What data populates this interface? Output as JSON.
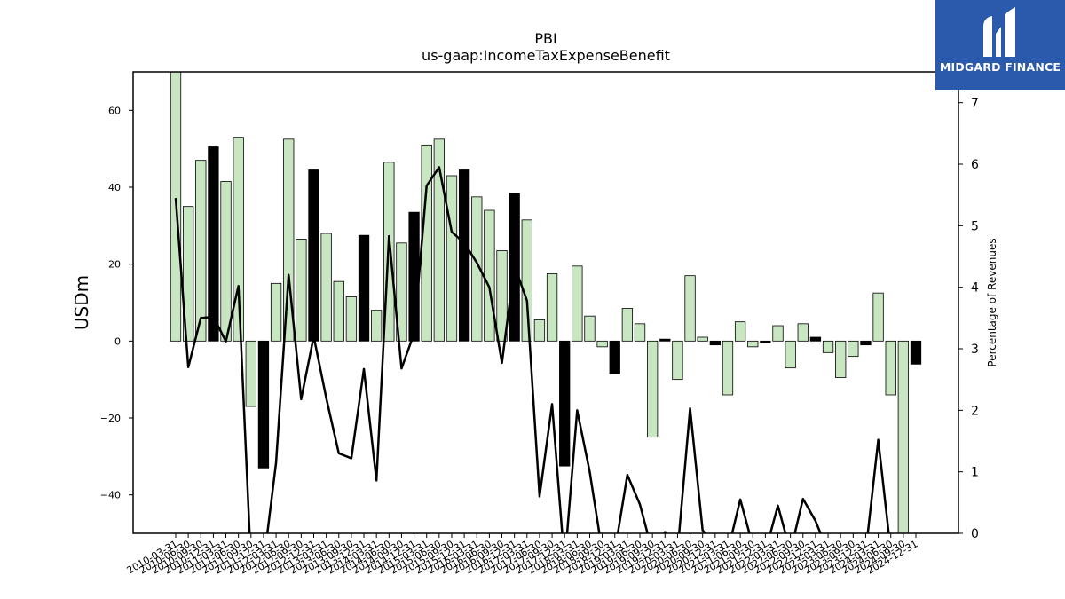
{
  "chart_data": {
    "type": "bar",
    "title": "PBI",
    "subtitle": "us-gaap:IncomeTaxExpenseBenefit",
    "ylabel": "USDm",
    "y2label": "Percentage of Revenues",
    "ylim": [
      -50,
      70
    ],
    "y2lim": [
      0,
      7.5
    ],
    "yticks": [
      -40,
      -20,
      0,
      20,
      40,
      60
    ],
    "y2ticks": [
      0,
      1,
      2,
      3,
      4,
      5,
      6,
      7
    ],
    "grid": false,
    "xtick_labels": [
      "2010-03-31",
      "2010-06-30",
      "2010-09-30",
      "2010-12-31",
      "2011-03-31",
      "2011-06-30",
      "2011-09-30",
      "2011-12-31",
      "2012-03-31",
      "2012-06-30",
      "2012-09-30",
      "2012-12-31",
      "2013-03-31",
      "2013-06-30",
      "2013-09-30",
      "2013-12-31",
      "2014-03-31",
      "2014-06-30",
      "2014-09-30",
      "2014-12-31",
      "2015-03-31",
      "2015-06-30",
      "2015-09-30",
      "2015-12-31",
      "2016-03-31",
      "2016-06-30",
      "2016-09-30",
      "2016-12-31",
      "2017-03-31",
      "2017-06-30",
      "2017-09-30",
      "2017-12-31",
      "2018-03-31",
      "2018-06-30",
      "2018-09-30",
      "2018-12-31",
      "2019-03-31",
      "2019-06-30",
      "2019-09-30",
      "2019-12-31",
      "2020-03-31",
      "2020-06-30",
      "2020-09-30",
      "2020-12-31",
      "2021-03-31",
      "2021-06-30",
      "2021-09-30",
      "2021-12-31",
      "2022-03-31",
      "2022-06-30",
      "2022-09-30",
      "2022-12-31",
      "2023-03-31",
      "2023-06-30",
      "2023-09-30",
      "2023-12-31",
      "2024-03-31",
      "2024-06-30",
      "2024-09-30",
      "2024-12-31"
    ],
    "series": [
      {
        "kind": "bar",
        "values": [
          72,
          35,
          47,
          50.5,
          41.5,
          53,
          -17,
          -33,
          15,
          52.5,
          26.5,
          44.5,
          28,
          15.5,
          11.5,
          27.5,
          8,
          46.5,
          25.5,
          33.5,
          51,
          52.5,
          43,
          44.5,
          37.5,
          34,
          23.5,
          38.5,
          31.5,
          5.5,
          17.5,
          -32.5,
          19.5,
          6.5,
          -1.5,
          -8.5,
          8.5,
          4.5,
          -25,
          0.5,
          -10,
          17,
          1,
          -1,
          -14,
          5,
          -1.5,
          -0.5,
          4,
          -7,
          4.5,
          1,
          -3,
          -9.5,
          -4,
          -1,
          12.5,
          -14,
          -58,
          -6
        ],
        "highlight": [
          false,
          false,
          false,
          true,
          false,
          false,
          false,
          true,
          false,
          false,
          false,
          true,
          false,
          false,
          false,
          true,
          false,
          false,
          false,
          true,
          false,
          false,
          false,
          true,
          false,
          false,
          false,
          true,
          false,
          false,
          false,
          true,
          false,
          false,
          false,
          true,
          false,
          false,
          false,
          true,
          false,
          false,
          false,
          true,
          false,
          false,
          false,
          true,
          false,
          false,
          false,
          true,
          false,
          false,
          false,
          true,
          false,
          false,
          false,
          true
        ]
      },
      {
        "kind": "line",
        "axis": "right",
        "values": [
          5.45,
          2.7,
          3.5,
          3.52,
          3.12,
          4.02,
          -0.5,
          -0.5,
          1.15,
          4.2,
          2.18,
          3.2,
          2.2,
          1.3,
          1.22,
          2.67,
          0.86,
          4.83,
          2.68,
          3.25,
          5.65,
          5.95,
          4.9,
          4.72,
          4.4,
          4.0,
          2.77,
          4.35,
          3.78,
          0.6,
          2.1,
          -0.5,
          2.0,
          1.0,
          -0.3,
          -0.3,
          0.95,
          0.47,
          -0.3,
          0.02,
          -0.3,
          2.03,
          0.05,
          -0.2,
          -0.3,
          0.55,
          -0.2,
          -0.3,
          0.45,
          -0.3,
          0.56,
          0.2,
          -0.3,
          -0.3,
          -0.3,
          -0.3,
          1.52,
          -0.3,
          -0.3,
          -0.3
        ]
      }
    ],
    "colors": {
      "bar_fill": "#c9e6c2",
      "bar_highlight": "#000000",
      "bar_edge": "#000000",
      "line": "#000000"
    }
  },
  "logo": {
    "text": "MIDGARD FINANCE",
    "background": "#2b5aad"
  }
}
